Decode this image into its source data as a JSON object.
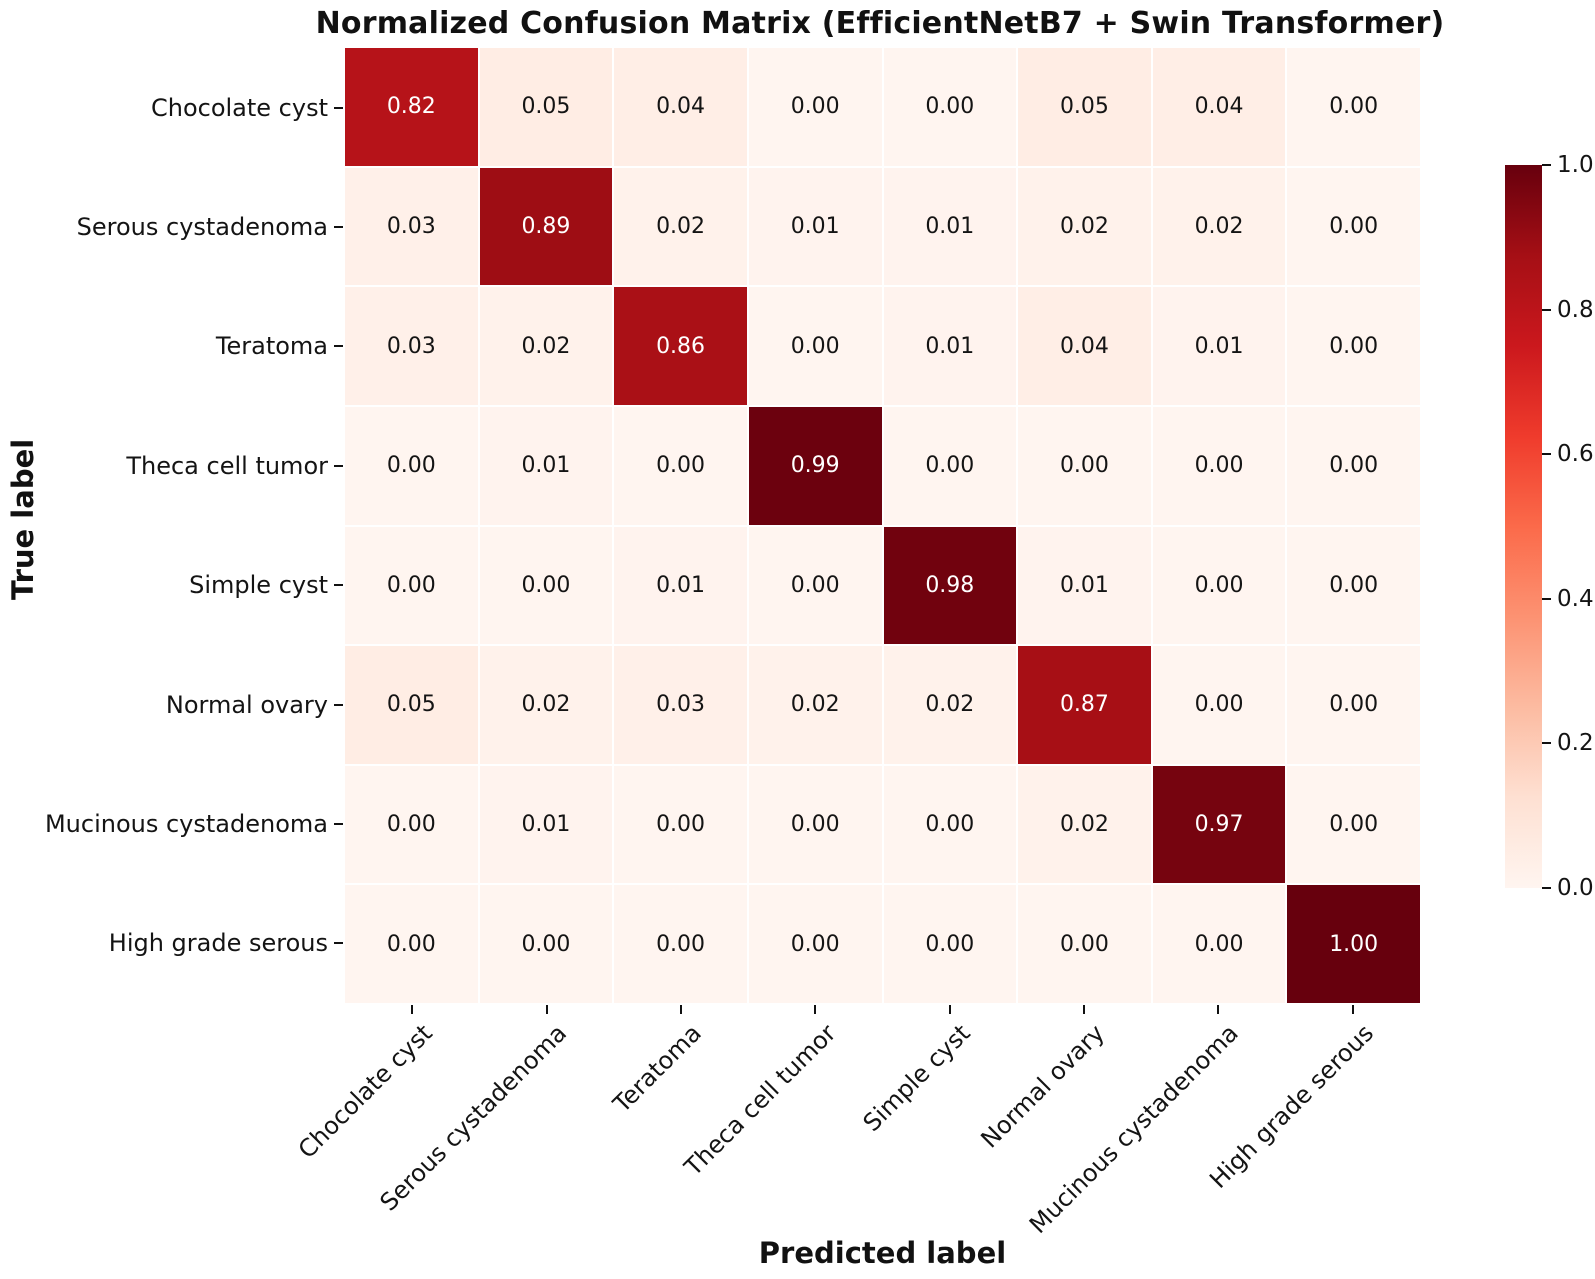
{
  "title": "Normalized Confusion Matrix (EfficientNetB7 + Swin Transformer)",
  "x_axis_title": "Predicted label",
  "y_axis_title": "True label",
  "colors": {
    "colormap": "Reds",
    "cmap_anchor_hex": [
      "#fff5f0",
      "#fee0d2",
      "#fcbba1",
      "#fc9272",
      "#fb6a4a",
      "#ef3b2c",
      "#cb181d",
      "#a50f15",
      "#67000d"
    ],
    "dark_cell_text": "#ffffff",
    "light_cell_text": "#141414",
    "tick_color": "#111111",
    "background": "#ffffff"
  },
  "chart_data": {
    "type": "heatmap",
    "title": "Normalized Confusion Matrix (EfficientNetB7 + Swin Transformer)",
    "xlabel": "Predicted label",
    "ylabel": "True label",
    "categories": [
      "Chocolate cyst",
      "Serous cystadenoma",
      "Teratoma",
      "Theca cell tumor",
      "Simple cyst",
      "Normal ovary",
      "Mucinous cystadenoma",
      "High grade serous"
    ],
    "row_labels": [
      "Chocolate cyst",
      "Serous cystadenoma",
      "Teratoma",
      "Theca cell tumor",
      "Simple cyst",
      "Normal ovary",
      "Mucinous cystadenoma",
      "High grade serous"
    ],
    "col_labels": [
      "Chocolate cyst",
      "Serous cystadenoma",
      "Teratoma",
      "Theca cell tumor",
      "Simple cyst",
      "Normal ovary",
      "Mucinous cystadenoma",
      "High grade serous"
    ],
    "values": [
      [
        0.82,
        0.05,
        0.04,
        0.0,
        0.0,
        0.05,
        0.04,
        0.0
      ],
      [
        0.03,
        0.89,
        0.02,
        0.01,
        0.01,
        0.02,
        0.02,
        0.0
      ],
      [
        0.03,
        0.02,
        0.86,
        0.0,
        0.01,
        0.04,
        0.01,
        0.0
      ],
      [
        0.0,
        0.01,
        0.0,
        0.99,
        0.0,
        0.0,
        0.0,
        0.0
      ],
      [
        0.0,
        0.0,
        0.01,
        0.0,
        0.98,
        0.01,
        0.0,
        0.0
      ],
      [
        0.05,
        0.02,
        0.03,
        0.02,
        0.02,
        0.87,
        0.0,
        0.0
      ],
      [
        0.0,
        0.01,
        0.0,
        0.0,
        0.0,
        0.02,
        0.97,
        0.0
      ],
      [
        0.0,
        0.0,
        0.0,
        0.0,
        0.0,
        0.0,
        0.0,
        1.0
      ]
    ],
    "value_format": "0.00",
    "vmin": 0.0,
    "vmax": 1.0,
    "grid": false,
    "colorbar": {
      "position": "right",
      "tick_labels": [
        "1.0",
        "0.8",
        "0.6",
        "0.4",
        "0.2",
        "0.0"
      ],
      "tick_values": [
        1.0,
        0.8,
        0.6,
        0.4,
        0.2,
        0.0
      ]
    },
    "x_tick_rotation_deg": 45
  }
}
